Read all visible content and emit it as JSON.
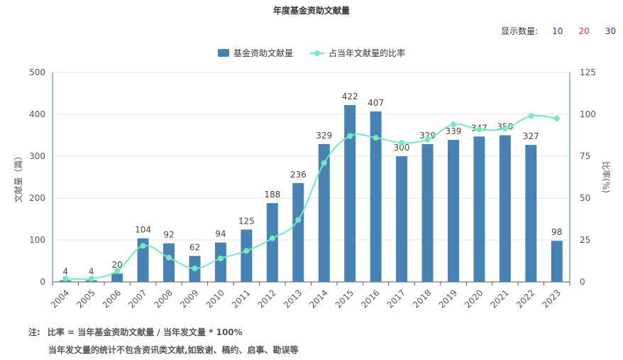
{
  "title": "年度基金资助文献量",
  "count_selector": {
    "label": "显示数量:",
    "options": [
      "10",
      "20",
      "30"
    ]
  },
  "legend": {
    "bar_label": "基金资助文献量",
    "line_label": "占当年文献量的比率"
  },
  "colors": {
    "bar": "#4682b4",
    "line": "#74e8c0",
    "axis_right": "#2a8ab4"
  },
  "notes": {
    "prefix": "注:",
    "line1": "比率 = 当年基金资助文献量 / 当年发文量 * 100%",
    "line2": "当年发文量的统计不包含资讯类文献,如致谢、稿约、启事、勘误等"
  },
  "chart_data": {
    "type": "bar",
    "title": "年度基金资助文献量",
    "ylabel": "文献量（篇）",
    "y2label": "比率(%)",
    "ylim": [
      0,
      500
    ],
    "yticks": [
      0,
      100,
      200,
      300,
      400,
      500
    ],
    "y2lim": [
      0,
      125
    ],
    "y2ticks": [
      0,
      25,
      50,
      75,
      100,
      125
    ],
    "grid": true,
    "legend_position": "top-center",
    "categories": [
      "2004",
      "2005",
      "2006",
      "2007",
      "2008",
      "2009",
      "2010",
      "2011",
      "2012",
      "2013",
      "2014",
      "2015",
      "2016",
      "2017",
      "2018",
      "2019",
      "2020",
      "2021",
      "2022",
      "2023"
    ],
    "series": [
      {
        "name": "基金资助文献量",
        "type": "bar",
        "axis": "left",
        "values": [
          4,
          4,
          20,
          104,
          92,
          62,
          94,
          125,
          188,
          236,
          329,
          422,
          407,
          300,
          329,
          339,
          347,
          350,
          327,
          98
        ]
      },
      {
        "name": "占当年文献量的比率",
        "type": "line",
        "axis": "right",
        "smooth": true,
        "values": [
          2,
          2,
          6.5,
          21.5,
          14.5,
          8,
          14,
          18.5,
          26,
          37,
          71,
          87,
          86,
          83,
          85,
          94,
          91,
          91.5,
          99,
          97.5
        ]
      }
    ]
  }
}
